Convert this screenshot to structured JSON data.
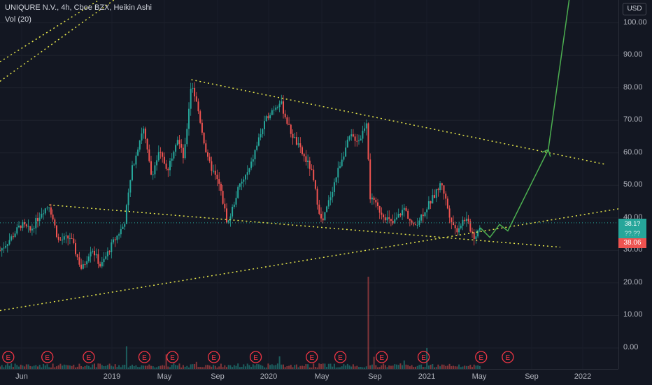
{
  "header": {
    "symbol_line": "UNIQURE N.V., 4h, Cboe BZX, Heikin Ashi",
    "volume_line": "Vol (20)"
  },
  "currency_button": "USD",
  "price_axis": {
    "ticks": [
      "100.00",
      "90.00",
      "80.00",
      "70.00",
      "60.00",
      "50.00",
      "40.00",
      "30.00",
      "20.00",
      "10.00",
      "0.00"
    ]
  },
  "price_tags": {
    "tag_upper": "38.1?",
    "tag_mid": "??.??",
    "last_price": "38.06"
  },
  "time_axis": {
    "labels": [
      "Jun",
      "2019",
      "May",
      "Sep",
      "2020",
      "May",
      "Sep",
      "2021",
      "May",
      "Sep",
      "2022"
    ]
  },
  "earnings_marker_label": "E",
  "colors": {
    "background": "#131722",
    "candle_up": "#26a69a",
    "candle_down": "#ef5350",
    "trendline": "#e6e64a",
    "projection": "#4caf50",
    "earnings": "#f23645"
  },
  "chart_data": {
    "type": "candlestick",
    "symbol": "UNIQURE N.V.",
    "interval": "4h",
    "exchange": "Cboe BZX",
    "style": "Heikin Ashi",
    "ylim": [
      0,
      105
    ],
    "y_ticks": [
      0,
      10,
      20,
      30,
      40,
      50,
      60,
      70,
      80,
      90,
      100
    ],
    "last_price": 38.06,
    "price_path": [
      [
        "2018-04-20",
        30
      ],
      [
        "2018-05-15",
        34
      ],
      [
        "2018-06-05",
        38
      ],
      [
        "2018-06-25",
        36
      ],
      [
        "2018-07-20",
        42
      ],
      [
        "2018-08-05",
        44
      ],
      [
        "2018-08-25",
        33
      ],
      [
        "2018-09-20",
        34
      ],
      [
        "2018-10-15",
        24
      ],
      [
        "2018-11-05",
        31
      ],
      [
        "2018-11-25",
        25
      ],
      [
        "2018-12-20",
        32
      ],
      [
        "2019-01-15",
        38
      ],
      [
        "2019-02-01",
        55
      ],
      [
        "2019-02-25",
        68
      ],
      [
        "2019-03-15",
        53
      ],
      [
        "2019-04-01",
        60
      ],
      [
        "2019-04-20",
        55
      ],
      [
        "2019-05-10",
        65
      ],
      [
        "2019-05-25",
        58
      ],
      [
        "2019-06-10",
        82
      ],
      [
        "2019-06-25",
        73
      ],
      [
        "2019-07-15",
        58
      ],
      [
        "2019-08-10",
        50
      ],
      [
        "2019-08-28",
        38
      ],
      [
        "2019-09-20",
        49
      ],
      [
        "2019-10-15",
        55
      ],
      [
        "2019-11-05",
        65
      ],
      [
        "2019-11-25",
        72
      ],
      [
        "2019-12-20",
        76
      ],
      [
        "2020-01-10",
        67
      ],
      [
        "2020-02-05",
        60
      ],
      [
        "2020-02-25",
        55
      ],
      [
        "2020-03-20",
        38
      ],
      [
        "2020-04-10",
        48
      ],
      [
        "2020-05-01",
        58
      ],
      [
        "2020-05-20",
        65
      ],
      [
        "2020-06-10",
        64
      ],
      [
        "2020-06-25",
        70
      ],
      [
        "2020-07-03",
        46
      ],
      [
        "2020-07-25",
        42
      ],
      [
        "2020-08-20",
        38
      ],
      [
        "2020-09-15",
        43
      ],
      [
        "2020-10-05",
        37
      ],
      [
        "2020-10-28",
        42
      ],
      [
        "2020-11-20",
        47
      ],
      [
        "2020-12-05",
        51
      ],
      [
        "2020-12-20",
        42
      ],
      [
        "2021-01-05",
        36
      ],
      [
        "2021-01-25",
        40
      ],
      [
        "2021-02-15",
        34
      ],
      [
        "2021-02-27",
        38.06
      ]
    ],
    "volume_spike_date": "2020-06-28",
    "earnings_dates": [
      "2018-05-08",
      "2018-08-01",
      "2018-10-30",
      "2019-02-28",
      "2019-04-30",
      "2019-07-29",
      "2019-10-28",
      "2020-02-27",
      "2020-04-29",
      "2020-07-28",
      "2020-10-27",
      "2021-03-01",
      "2021-04-28"
    ],
    "trendlines": [
      {
        "style": "dotted",
        "from": [
          "2019-06-10",
          82.5
        ],
        "to": [
          "2021-11-25",
          56.5
        ]
      },
      {
        "style": "dotted",
        "from": [
          "2018-08-05",
          44
        ],
        "to": [
          "2021-08-20",
          31
        ]
      },
      {
        "style": "dotted",
        "from": [
          "2018-04-20",
          11.5
        ],
        "to": [
          "2022-02-15",
          44
        ]
      },
      {
        "style": "dotted",
        "from": [
          "2018-04-20",
          82
        ],
        "to": [
          "2019-06-20",
          125
        ]
      },
      {
        "style": "dotted",
        "from": [
          "2018-04-20",
          88
        ],
        "to": [
          "2018-12-25",
          110
        ]
      }
    ],
    "projection": {
      "style": "solid",
      "points": [
        [
          "2021-02-27",
          37
        ],
        [
          "2021-03-20",
          34
        ],
        [
          "2021-04-10",
          38
        ],
        [
          "2021-04-28",
          36
        ],
        [
          "2021-07-25",
          61
        ],
        [
          "2021-10-01",
          130
        ]
      ],
      "arrowheads_at": [
        [
          "2021-07-25",
          61
        ]
      ]
    },
    "dotted_price_line": 38.5
  }
}
